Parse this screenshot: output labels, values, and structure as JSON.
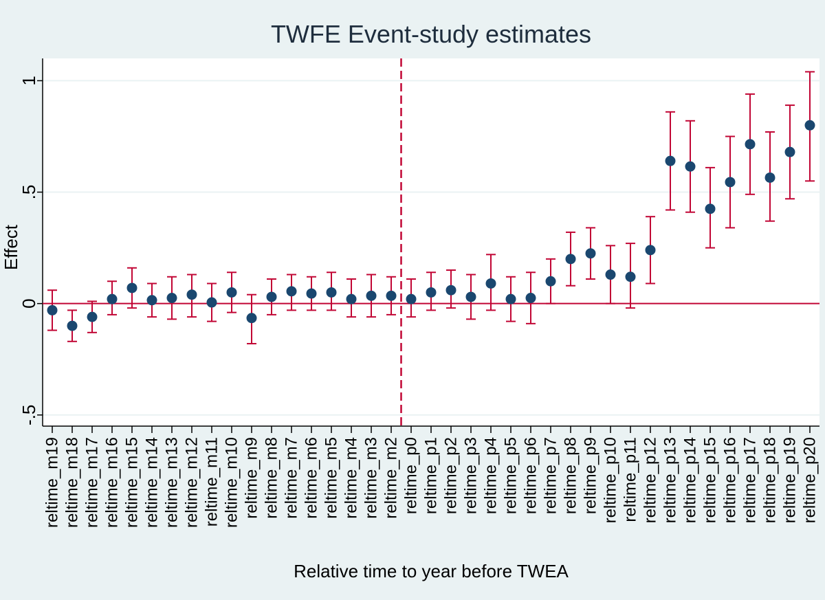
{
  "chart_data": {
    "type": "scatter",
    "title": "TWFE Event-study estimates",
    "xlabel": "Relative time to year before TWEA",
    "ylabel": "Effect",
    "ylim": [
      -0.55,
      1.1
    ],
    "yticks": [
      -0.5,
      0,
      0.5,
      1
    ],
    "ytick_labels": [
      "-.5",
      "0",
      ".5",
      "1"
    ],
    "grid": "horizontal",
    "reference_hline": 0,
    "reference_vline_between": [
      "reltime_m2",
      "reltime_p0"
    ],
    "colors": {
      "background": "#eaf2f3",
      "plot_bg": "#ffffff",
      "marker": "#1a476f",
      "ci": "#c10534",
      "refline": "#c10534",
      "grid": "#eaf2f3"
    },
    "categories": [
      "reltime_m19",
      "reltime_m18",
      "reltime_m17",
      "reltime_m16",
      "reltime_m15",
      "reltime_m14",
      "reltime_m13",
      "reltime_m12",
      "reltime_m11",
      "reltime_m10",
      "reltime_m9",
      "reltime_m8",
      "reltime_m7",
      "reltime_m6",
      "reltime_m5",
      "reltime_m4",
      "reltime_m3",
      "reltime_m2",
      "reltime_p0",
      "reltime_p1",
      "reltime_p2",
      "reltime_p3",
      "reltime_p4",
      "reltime_p5",
      "reltime_p6",
      "reltime_p7",
      "reltime_p8",
      "reltime_p9",
      "reltime_p10",
      "reltime_p11",
      "reltime_p12",
      "reltime_p13",
      "reltime_p14",
      "reltime_p15",
      "reltime_p16",
      "reltime_p17",
      "reltime_p18",
      "reltime_p19",
      "reltime_p20"
    ],
    "estimates": [
      -0.03,
      -0.1,
      -0.06,
      0.02,
      0.07,
      0.015,
      0.025,
      0.04,
      0.005,
      0.05,
      -0.065,
      0.03,
      0.055,
      0.045,
      0.05,
      0.02,
      0.035,
      0.035,
      0.02,
      0.05,
      0.06,
      0.03,
      0.09,
      0.02,
      0.025,
      0.1,
      0.2,
      0.225,
      0.13,
      0.12,
      0.24,
      0.64,
      0.615,
      0.425,
      0.545,
      0.715,
      0.565,
      0.68,
      0.8
    ],
    "ci_lower": [
      -0.12,
      -0.17,
      -0.13,
      -0.05,
      -0.02,
      -0.06,
      -0.07,
      -0.06,
      -0.08,
      -0.04,
      -0.18,
      -0.05,
      -0.03,
      -0.03,
      -0.03,
      -0.06,
      -0.06,
      -0.05,
      -0.06,
      -0.03,
      -0.02,
      -0.07,
      -0.03,
      -0.08,
      -0.09,
      0.0,
      0.08,
      0.11,
      0.0,
      -0.02,
      0.09,
      0.42,
      0.41,
      0.25,
      0.34,
      0.49,
      0.37,
      0.47,
      0.55
    ],
    "ci_upper": [
      0.06,
      -0.03,
      0.01,
      0.1,
      0.16,
      0.09,
      0.12,
      0.13,
      0.09,
      0.14,
      0.04,
      0.11,
      0.13,
      0.12,
      0.14,
      0.11,
      0.13,
      0.12,
      0.11,
      0.14,
      0.15,
      0.13,
      0.22,
      0.12,
      0.14,
      0.2,
      0.32,
      0.34,
      0.26,
      0.27,
      0.39,
      0.86,
      0.82,
      0.61,
      0.75,
      0.94,
      0.77,
      0.89,
      1.04
    ]
  }
}
